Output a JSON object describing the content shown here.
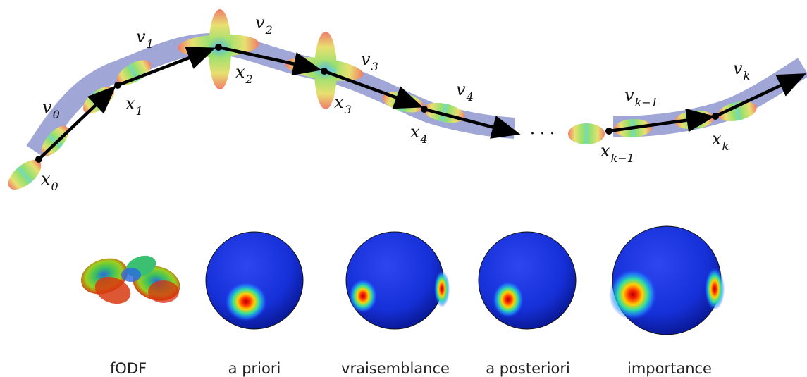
{
  "trajectory": {
    "points": [
      {
        "id": "x0",
        "label": "x",
        "sub": "0"
      },
      {
        "id": "x1",
        "label": "x",
        "sub": "1"
      },
      {
        "id": "x2",
        "label": "x",
        "sub": "2"
      },
      {
        "id": "x3",
        "label": "x",
        "sub": "3"
      },
      {
        "id": "x4",
        "label": "x",
        "sub": "4"
      },
      {
        "id": "xkm1",
        "label": "x",
        "sub": "k−1"
      },
      {
        "id": "xk",
        "label": "x",
        "sub": "k"
      }
    ],
    "directions": [
      {
        "id": "v0",
        "label": "v",
        "sub": "0"
      },
      {
        "id": "v1",
        "label": "v",
        "sub": "1"
      },
      {
        "id": "v2",
        "label": "v",
        "sub": "2"
      },
      {
        "id": "v3",
        "label": "v",
        "sub": "3"
      },
      {
        "id": "v4",
        "label": "v",
        "sub": "4"
      },
      {
        "id": "vkm1",
        "label": "v",
        "sub": "k−1"
      },
      {
        "id": "vk",
        "label": "v",
        "sub": "k"
      }
    ],
    "ellipsis": "· · ·"
  },
  "captions": {
    "fodf": "fODF",
    "prior": "a priori",
    "likelihood": "vraisemblance",
    "posterior": "a posteriori",
    "importance": "importance"
  },
  "colors": {
    "tube": "#8f98d0",
    "sphere_base": "#1a2ed8",
    "arrow": "#000000"
  }
}
